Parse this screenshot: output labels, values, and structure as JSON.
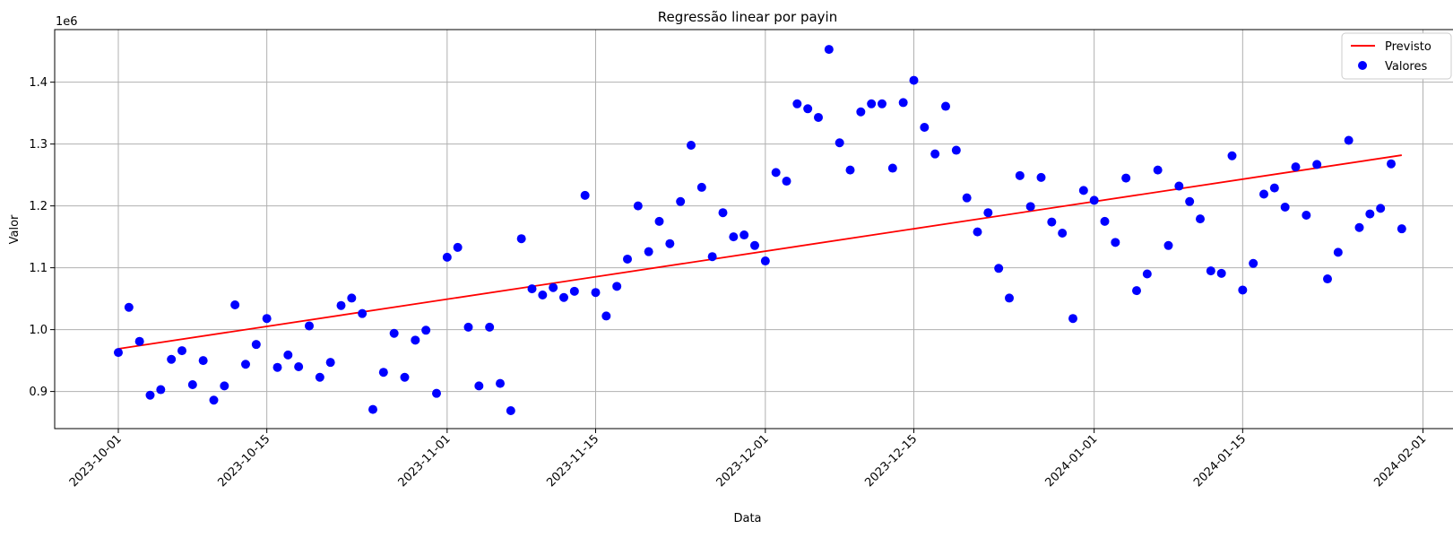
{
  "chart_data": {
    "type": "scatter",
    "title": "Regressão linear por payin",
    "xlabel": "Data",
    "ylabel": "Valor",
    "y_offset_label": "1e6",
    "x_ticks": [
      "2023-10-01",
      "2023-10-15",
      "2023-11-01",
      "2023-11-15",
      "2023-12-01",
      "2023-12-15",
      "2024-01-01",
      "2024-01-15",
      "2024-02-01"
    ],
    "y_ticks": [
      0.9,
      1.0,
      1.1,
      1.2,
      1.3,
      1.4
    ],
    "y_tick_labels": [
      "0.9",
      "1.0",
      "1.1",
      "1.2",
      "1.3",
      "1.4"
    ],
    "ylim": [
      0.84,
      1.485
    ],
    "xlim": [
      "2023-09-25",
      "2024-02-04"
    ],
    "grid": true,
    "legend_position": "top-right",
    "colors": {
      "line": "#ff0000",
      "points": "#0000ff"
    },
    "series": [
      {
        "name": "Previsto",
        "type": "line",
        "x": [
          "2023-10-01",
          "2024-01-30"
        ],
        "y": [
          0.969,
          1.282
        ]
      },
      {
        "name": "Valores",
        "type": "scatter",
        "x": [
          "2023-10-01",
          "2023-10-02",
          "2023-10-03",
          "2023-10-04",
          "2023-10-05",
          "2023-10-06",
          "2023-10-07",
          "2023-10-08",
          "2023-10-09",
          "2023-10-10",
          "2023-10-11",
          "2023-10-12",
          "2023-10-13",
          "2023-10-14",
          "2023-10-15",
          "2023-10-16",
          "2023-10-17",
          "2023-10-18",
          "2023-10-19",
          "2023-10-20",
          "2023-10-21",
          "2023-10-22",
          "2023-10-23",
          "2023-10-24",
          "2023-10-25",
          "2023-10-26",
          "2023-10-27",
          "2023-10-28",
          "2023-10-29",
          "2023-10-30",
          "2023-10-31",
          "2023-11-01",
          "2023-11-02",
          "2023-11-03",
          "2023-11-04",
          "2023-11-05",
          "2023-11-06",
          "2023-11-07",
          "2023-11-08",
          "2023-11-09",
          "2023-11-10",
          "2023-11-11",
          "2023-11-12",
          "2023-11-13",
          "2023-11-14",
          "2023-11-15",
          "2023-11-16",
          "2023-11-17",
          "2023-11-18",
          "2023-11-19",
          "2023-11-20",
          "2023-11-21",
          "2023-11-22",
          "2023-11-23",
          "2023-11-24",
          "2023-11-25",
          "2023-11-26",
          "2023-11-27",
          "2023-11-28",
          "2023-11-29",
          "2023-11-30",
          "2023-12-01",
          "2023-12-02",
          "2023-12-03",
          "2023-12-04",
          "2023-12-05",
          "2023-12-06",
          "2023-12-07",
          "2023-12-08",
          "2023-12-09",
          "2023-12-10",
          "2023-12-11",
          "2023-12-12",
          "2023-12-13",
          "2023-12-14",
          "2023-12-15",
          "2023-12-16",
          "2023-12-17",
          "2023-12-18",
          "2023-12-19",
          "2023-12-20",
          "2023-12-21",
          "2023-12-22",
          "2023-12-23",
          "2023-12-24",
          "2023-12-25",
          "2023-12-26",
          "2023-12-27",
          "2023-12-28",
          "2023-12-29",
          "2023-12-30",
          "2023-12-31",
          "2024-01-01",
          "2024-01-02",
          "2024-01-03",
          "2024-01-04",
          "2024-01-05",
          "2024-01-06",
          "2024-01-07",
          "2024-01-08",
          "2024-01-09",
          "2024-01-10",
          "2024-01-11",
          "2024-01-12",
          "2024-01-13",
          "2024-01-14",
          "2024-01-15",
          "2024-01-16",
          "2024-01-17",
          "2024-01-18",
          "2024-01-19",
          "2024-01-20",
          "2024-01-21",
          "2024-01-22",
          "2024-01-23",
          "2024-01-24",
          "2024-01-25",
          "2024-01-26",
          "2024-01-27",
          "2024-01-28",
          "2024-01-29",
          "2024-01-30"
        ],
        "y": [
          0.963,
          1.036,
          0.981,
          0.894,
          0.903,
          0.952,
          0.966,
          0.911,
          0.95,
          0.886,
          0.909,
          1.04,
          0.944,
          0.976,
          1.018,
          0.939,
          0.959,
          0.94,
          1.006,
          0.923,
          0.947,
          1.039,
          1.051,
          1.026,
          0.871,
          0.931,
          0.994,
          0.923,
          0.983,
          0.999,
          0.897,
          1.117,
          1.133,
          1.004,
          0.909,
          1.004,
          0.913,
          0.869,
          1.147,
          1.066,
          1.056,
          1.068,
          1.052,
          1.062,
          1.217,
          1.06,
          1.022,
          1.07,
          1.114,
          1.2,
          1.126,
          1.175,
          1.139,
          1.207,
          1.298,
          1.23,
          1.118,
          1.189,
          1.15,
          1.153,
          1.136,
          1.111,
          1.254,
          1.24,
          1.365,
          1.357,
          1.343,
          1.453,
          1.302,
          1.258,
          1.352,
          1.365,
          1.365,
          1.261,
          1.367,
          1.403,
          1.327,
          1.284,
          1.361,
          1.29,
          1.213,
          1.158,
          1.189,
          1.099,
          1.051,
          1.249,
          1.199,
          1.246,
          1.174,
          1.156,
          1.018,
          1.225,
          1.209,
          1.175,
          1.141,
          1.245,
          1.063,
          1.09,
          1.258,
          1.136,
          1.232,
          1.207,
          1.179,
          1.095,
          1.091,
          1.281,
          1.064,
          1.107,
          1.219,
          1.229,
          1.198,
          1.263,
          1.185,
          1.267,
          1.082,
          1.125,
          1.306,
          1.165,
          1.187,
          1.196,
          1.268,
          1.163
        ]
      }
    ]
  }
}
